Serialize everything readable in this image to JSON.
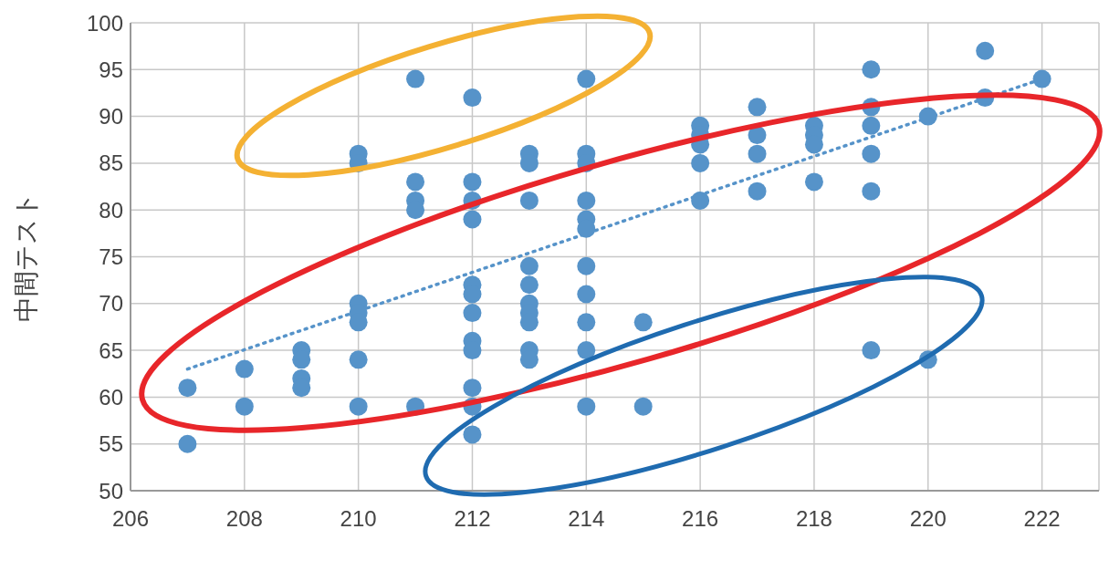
{
  "chart_data": {
    "type": "scatter",
    "ylabel": "中間テスト",
    "xlim": [
      206,
      223
    ],
    "xticks": [
      206,
      208,
      210,
      212,
      214,
      216,
      218,
      220,
      222
    ],
    "ylim": [
      50,
      100
    ],
    "yticks": [
      50,
      55,
      60,
      65,
      70,
      75,
      80,
      85,
      90,
      95,
      100
    ],
    "grid": true,
    "marker": "circle",
    "series": [
      {
        "type": "scatter",
        "color": "#5693c9",
        "x": [
          207,
          207,
          208,
          208,
          209,
          209,
          209,
          209,
          210,
          210,
          210,
          210,
          210,
          210,
          210,
          211,
          211,
          211,
          211,
          211,
          212,
          212,
          212,
          212,
          212,
          212,
          212,
          212,
          212,
          212,
          212,
          212,
          213,
          213,
          213,
          213,
          213,
          213,
          213,
          213,
          213,
          213,
          214,
          214,
          214,
          214,
          214,
          214,
          214,
          214,
          214,
          214,
          214,
          215,
          215,
          216,
          216,
          216,
          216,
          216,
          217,
          217,
          217,
          217,
          218,
          218,
          218,
          218,
          219,
          219,
          219,
          219,
          219,
          219,
          220,
          220,
          221,
          221,
          222
        ],
        "values": [
          61,
          55,
          63,
          59,
          65,
          64,
          62,
          61,
          86,
          85,
          70,
          69,
          68,
          64,
          59,
          94,
          83,
          81,
          80,
          59,
          92,
          83,
          81,
          79,
          72,
          71,
          69,
          66,
          65,
          61,
          59,
          56,
          86,
          85,
          81,
          74,
          72,
          70,
          69,
          68,
          65,
          64,
          94,
          86,
          85,
          81,
          79,
          78,
          74,
          71,
          68,
          65,
          59,
          68,
          59,
          89,
          88,
          87,
          85,
          81,
          91,
          88,
          86,
          82,
          89,
          88,
          87,
          83,
          95,
          91,
          89,
          86,
          82,
          65,
          90,
          64,
          97,
          92,
          94
        ]
      },
      {
        "type": "line",
        "color": "#5693c9",
        "line_style": "dotted",
        "marker": "none",
        "x": [
          207,
          222
        ],
        "values": [
          63,
          94
        ]
      }
    ]
  }
}
